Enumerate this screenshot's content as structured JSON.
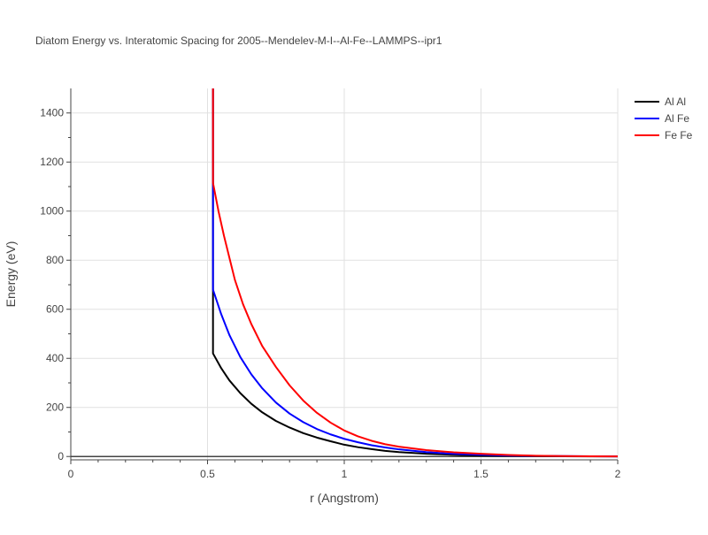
{
  "chart_data": {
    "type": "line",
    "title": "Diatom Energy vs. Interatomic Spacing for 2005--Mendelev-M-I--Al-Fe--LAMMPS--ipr1",
    "xlabel": "r (Angstrom)",
    "ylabel": "Energy (eV)",
    "xlim": [
      0,
      2
    ],
    "ylim": [
      -10,
      1500
    ],
    "xticks": [
      0,
      0.5,
      1,
      1.5,
      2
    ],
    "xtick_labels": [
      "0",
      "0.5",
      "1",
      "1.5",
      "2"
    ],
    "yticks": [
      0,
      200,
      400,
      600,
      800,
      1000,
      1200,
      1400
    ],
    "ytick_labels": [
      "0",
      "200",
      "400",
      "600",
      "800",
      "1000",
      "1200",
      "1400"
    ],
    "grid": true,
    "legend_position": "top-right",
    "series": [
      {
        "name": "Al Al",
        "color": "#000000",
        "x": [
          0.52,
          0.52,
          0.55,
          0.58,
          0.62,
          0.66,
          0.7,
          0.75,
          0.8,
          0.85,
          0.9,
          0.95,
          1.0,
          1.05,
          1.1,
          1.15,
          1.2,
          1.3,
          1.4,
          1.5,
          1.6,
          1.7,
          1.8,
          1.9,
          2.0
        ],
        "y": [
          1500,
          420,
          360,
          310,
          258,
          215,
          180,
          145,
          118,
          95,
          77,
          62,
          48,
          38,
          30,
          23,
          18,
          11,
          7,
          4,
          2.5,
          1.5,
          1,
          0.5,
          0.3
        ]
      },
      {
        "name": "Al Fe",
        "color": "#0000ff",
        "x": [
          0.52,
          0.52,
          0.55,
          0.58,
          0.62,
          0.66,
          0.7,
          0.75,
          0.8,
          0.85,
          0.9,
          0.95,
          1.0,
          1.05,
          1.1,
          1.15,
          1.2,
          1.3,
          1.4,
          1.5,
          1.6,
          1.7,
          1.8,
          1.9,
          2.0
        ],
        "y": [
          1500,
          680,
          580,
          495,
          405,
          335,
          278,
          220,
          175,
          140,
          112,
          90,
          72,
          58,
          46,
          37,
          29,
          18,
          11,
          7,
          4,
          2.5,
          1.5,
          0.8,
          0.4
        ]
      },
      {
        "name": "Fe Fe",
        "color": "#ff0000",
        "x": [
          0.52,
          0.52,
          0.54,
          0.56,
          0.58,
          0.6,
          0.63,
          0.66,
          0.7,
          0.75,
          0.8,
          0.85,
          0.9,
          0.95,
          1.0,
          1.05,
          1.1,
          1.15,
          1.2,
          1.3,
          1.4,
          1.5,
          1.6,
          1.7,
          1.8,
          1.9,
          2.0
        ],
        "y": [
          1500,
          1115,
          1000,
          900,
          810,
          720,
          620,
          540,
          450,
          365,
          290,
          228,
          178,
          138,
          106,
          82,
          64,
          50,
          40,
          26,
          17,
          11,
          6,
          3,
          1.5,
          0.8,
          0.3
        ]
      }
    ]
  }
}
